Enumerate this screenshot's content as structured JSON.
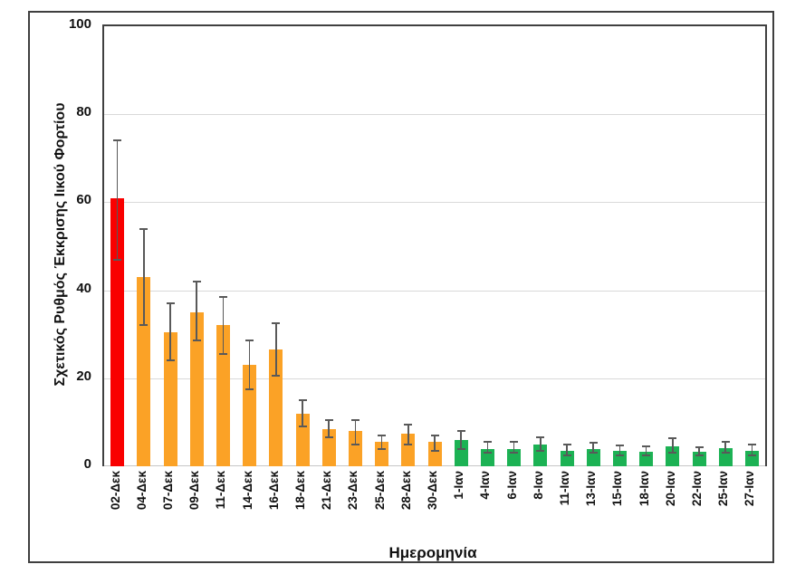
{
  "chart_data": {
    "type": "bar",
    "title": "",
    "xlabel": "Ημερομηνία",
    "ylabel": "Σχετικός Ρυθμός Έκκρισης Ιικού Φορτίου",
    "ylim": [
      0,
      100
    ],
    "yticks": [
      0,
      20,
      40,
      60,
      80,
      100
    ],
    "grid": "horizontal",
    "legend": "none",
    "error_bars": "symmetric-style whiskers with caps, drawn over bars",
    "colors": {
      "bar_red": "#f90000",
      "bar_orange": "#fba226",
      "bar_green": "#1cb254",
      "error_bar": "#595959",
      "gridline": "#d9d9d9",
      "axis_frame": "#404040",
      "outer_border": "#3f3f3f"
    },
    "points": [
      {
        "label": "02-Δεκ",
        "value": 61,
        "err_low": 47,
        "err_high": 74,
        "group": "bar_red"
      },
      {
        "label": "04-Δεκ",
        "value": 43,
        "err_low": 32,
        "err_high": 54,
        "group": "bar_orange"
      },
      {
        "label": "07-Δεκ",
        "value": 30.5,
        "err_low": 24,
        "err_high": 37,
        "group": "bar_orange"
      },
      {
        "label": "09-Δεκ",
        "value": 35,
        "err_low": 28.5,
        "err_high": 42,
        "group": "bar_orange"
      },
      {
        "label": "11-Δεκ",
        "value": 32,
        "err_low": 25.5,
        "err_high": 38.5,
        "group": "bar_orange"
      },
      {
        "label": "14-Δεκ",
        "value": 23,
        "err_low": 17.5,
        "err_high": 28.5,
        "group": "bar_orange"
      },
      {
        "label": "16-Δεκ",
        "value": 26.5,
        "err_low": 20.5,
        "err_high": 32.5,
        "group": "bar_orange"
      },
      {
        "label": "18-Δεκ",
        "value": 12,
        "err_low": 9,
        "err_high": 15,
        "group": "bar_orange"
      },
      {
        "label": "21-Δεκ",
        "value": 8.5,
        "err_low": 6.5,
        "err_high": 10.5,
        "group": "bar_orange"
      },
      {
        "label": "23-Δεκ",
        "value": 8,
        "err_low": 5,
        "err_high": 10.5,
        "group": "bar_orange"
      },
      {
        "label": "25-Δεκ",
        "value": 5.5,
        "err_low": 4,
        "err_high": 7,
        "group": "bar_orange"
      },
      {
        "label": "28-Δεκ",
        "value": 7.5,
        "err_low": 5,
        "err_high": 9.5,
        "group": "bar_orange"
      },
      {
        "label": "30-Δεκ",
        "value": 5.5,
        "err_low": 3.5,
        "err_high": 7,
        "group": "bar_orange"
      },
      {
        "label": "1-Ιαν",
        "value": 6,
        "err_low": 4,
        "err_high": 8,
        "group": "bar_green"
      },
      {
        "label": "4-Ιαν",
        "value": 4,
        "err_low": 3,
        "err_high": 5.5,
        "group": "bar_green"
      },
      {
        "label": "6-Ιαν",
        "value": 4,
        "err_low": 3,
        "err_high": 5.5,
        "group": "bar_green"
      },
      {
        "label": "8-Ιαν",
        "value": 5,
        "err_low": 3.5,
        "err_high": 6.5,
        "group": "bar_green"
      },
      {
        "label": "11-Ιαν",
        "value": 3.5,
        "err_low": 2.5,
        "err_high": 5,
        "group": "bar_green"
      },
      {
        "label": "13-Ιαν",
        "value": 4,
        "err_low": 3,
        "err_high": 5.3,
        "group": "bar_green"
      },
      {
        "label": "15-Ιαν",
        "value": 3.4,
        "err_low": 2.5,
        "err_high": 4.7,
        "group": "bar_green"
      },
      {
        "label": "18-Ιαν",
        "value": 3.3,
        "err_low": 2.4,
        "err_high": 4.5,
        "group": "bar_green"
      },
      {
        "label": "20-Ιαν",
        "value": 4.5,
        "err_low": 3,
        "err_high": 6.3,
        "group": "bar_green"
      },
      {
        "label": "22-Ιαν",
        "value": 3.3,
        "err_low": 2.4,
        "err_high": 4.4,
        "group": "bar_green"
      },
      {
        "label": "25-Ιαν",
        "value": 4.2,
        "err_low": 3,
        "err_high": 5.5,
        "group": "bar_green"
      },
      {
        "label": "27-Ιαν",
        "value": 3.5,
        "err_low": 2.5,
        "err_high": 4.9,
        "group": "bar_green"
      }
    ]
  }
}
